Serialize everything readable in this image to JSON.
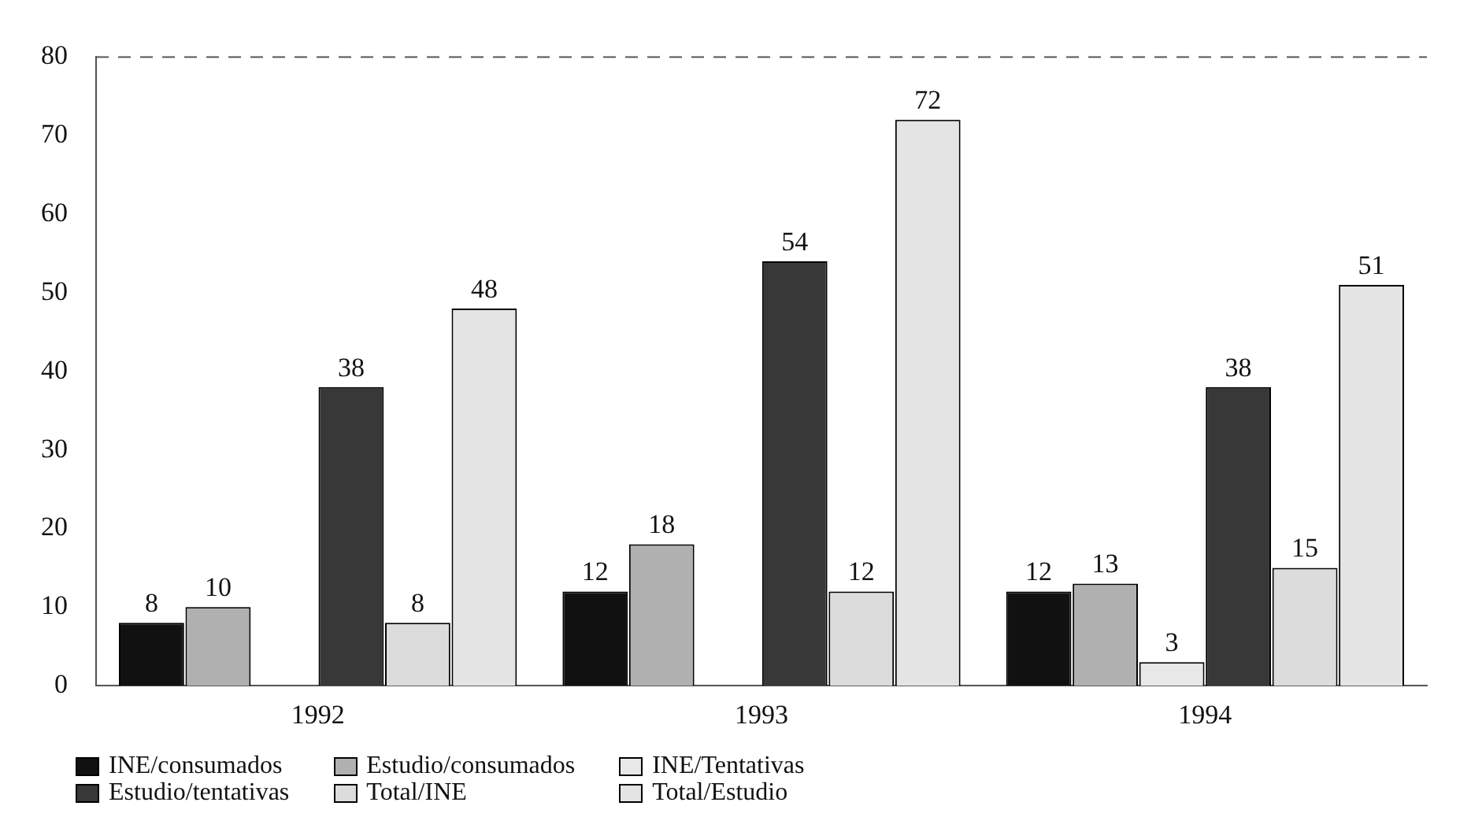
{
  "chart_data": {
    "type": "bar",
    "categories": [
      "1992",
      "1993",
      "1994"
    ],
    "series": [
      {
        "name": "INE/consumados",
        "color": "#111111",
        "values": [
          8,
          12,
          12
        ]
      },
      {
        "name": "Estudio/consumados",
        "color": "#b0b0b0",
        "values": [
          10,
          18,
          13
        ]
      },
      {
        "name": "INE/Tentativas",
        "color": "#e8e8e8",
        "values": [
          null,
          null,
          3
        ]
      },
      {
        "name": "Estudio/tentativas",
        "color": "#383838",
        "values": [
          38,
          54,
          38
        ]
      },
      {
        "name": "Total/INE",
        "color": "#dcdcdc",
        "values": [
          8,
          12,
          15
        ]
      },
      {
        "name": "Total/Estudio",
        "color": "#e4e4e4",
        "values": [
          48,
          72,
          51
        ]
      }
    ],
    "ylim": [
      0,
      80
    ],
    "yticks": [
      0,
      10,
      20,
      30,
      40,
      50,
      60,
      70,
      80
    ],
    "grid": false,
    "legend": "bottom",
    "data_labels": true
  }
}
